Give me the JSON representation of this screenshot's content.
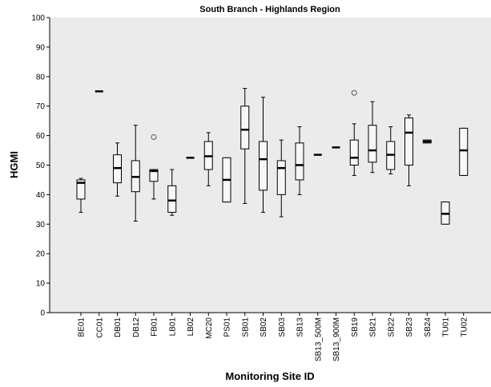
{
  "chart_data": {
    "type": "box",
    "title": "South Branch - Highlands Region",
    "x_label": "Monitoring Site ID",
    "y_label": "HGMI",
    "categories": [
      "BE01",
      "CC01",
      "DB01",
      "DB12",
      "FB01",
      "LB01",
      "LB02",
      "MC20",
      "PS01",
      "SB01",
      "SB02",
      "SB03",
      "SB13",
      "SB13_500M",
      "SB13_900M",
      "SB19",
      "SB21",
      "SB22",
      "SB23",
      "SB24",
      "TU01",
      "TU02"
    ],
    "boxes": [
      {
        "min": 34,
        "q1": 38.5,
        "median": 44,
        "q3": 45,
        "max": 45.5,
        "outliers": []
      },
      {
        "min": 75,
        "q1": 75,
        "median": 75,
        "q3": 75,
        "max": 75,
        "outliers": []
      },
      {
        "min": 39.5,
        "q1": 44,
        "median": 49,
        "q3": 53.5,
        "max": 57.5,
        "outliers": []
      },
      {
        "min": 31,
        "q1": 41,
        "median": 46,
        "q3": 51.5,
        "max": 63.5,
        "outliers": []
      },
      {
        "min": 38.5,
        "q1": 44.5,
        "median": 48,
        "q3": 48.5,
        "max": 48.5,
        "outliers": [
          59.5
        ]
      },
      {
        "min": 33,
        "q1": 34,
        "median": 38,
        "q3": 43,
        "max": 48.5,
        "outliers": []
      },
      {
        "min": 52.5,
        "q1": 52.5,
        "median": 52.5,
        "q3": 52.5,
        "max": 52.5,
        "outliers": []
      },
      {
        "min": 43,
        "q1": 48.5,
        "median": 53,
        "q3": 58,
        "max": 61,
        "outliers": []
      },
      {
        "min": 37.5,
        "q1": 37.5,
        "median": 45,
        "q3": 52.5,
        "max": 52.5,
        "outliers": []
      },
      {
        "min": 37,
        "q1": 55.5,
        "median": 62,
        "q3": 70,
        "max": 76,
        "outliers": []
      },
      {
        "min": 34,
        "q1": 41.5,
        "median": 52,
        "q3": 58,
        "max": 73,
        "outliers": []
      },
      {
        "min": 32.5,
        "q1": 40,
        "median": 49,
        "q3": 51.5,
        "max": 58.5,
        "outliers": []
      },
      {
        "min": 40,
        "q1": 45,
        "median": 50,
        "q3": 57.5,
        "max": 63,
        "outliers": []
      },
      {
        "min": 53.5,
        "q1": 53.5,
        "median": 53.5,
        "q3": 53.5,
        "max": 53.5,
        "outliers": []
      },
      {
        "min": 56,
        "q1": 56,
        "median": 56,
        "q3": 56,
        "max": 56,
        "outliers": []
      },
      {
        "min": 46.5,
        "q1": 50,
        "median": 52.5,
        "q3": 58.5,
        "max": 64,
        "outliers": [
          74.5
        ]
      },
      {
        "min": 47.5,
        "q1": 51,
        "median": 55,
        "q3": 63.5,
        "max": 71.5,
        "outliers": []
      },
      {
        "min": 47,
        "q1": 48.5,
        "median": 53.5,
        "q3": 58,
        "max": 63,
        "outliers": []
      },
      {
        "min": 43,
        "q1": 50,
        "median": 61,
        "q3": 66,
        "max": 67,
        "outliers": []
      },
      {
        "min": 57.5,
        "q1": 57.5,
        "median": 58,
        "q3": 58.5,
        "max": 58.5,
        "outliers": []
      },
      {
        "min": 30,
        "q1": 30,
        "median": 33.5,
        "q3": 37.5,
        "max": 37.5,
        "outliers": []
      },
      {
        "min": 46.5,
        "q1": 46.5,
        "median": 55,
        "q3": 62.5,
        "max": 62.5,
        "outliers": []
      }
    ],
    "ylim": [
      0,
      100
    ],
    "yticks": [
      0,
      10,
      20,
      30,
      40,
      50,
      60,
      70,
      80,
      90,
      100
    ]
  }
}
